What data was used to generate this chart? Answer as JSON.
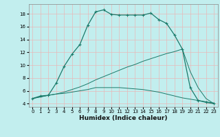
{
  "xlabel": "Humidex (Indice chaleur)",
  "bg_color": "#c2eeee",
  "grid_color_v": "#e8b8b8",
  "grid_color_h": "#d8d8d8",
  "line_color": "#1a7a6a",
  "xlim": [
    -0.5,
    23.5
  ],
  "ylim": [
    3.5,
    19.5
  ],
  "xticks": [
    0,
    1,
    2,
    3,
    4,
    5,
    6,
    7,
    8,
    9,
    10,
    11,
    12,
    13,
    14,
    15,
    16,
    17,
    18,
    19,
    20,
    21,
    22,
    23
  ],
  "yticks": [
    4,
    6,
    8,
    10,
    12,
    14,
    16,
    18
  ],
  "curve1_x": [
    0,
    1,
    2,
    3,
    4,
    5,
    6,
    7,
    8,
    9,
    10,
    11,
    12,
    13,
    14,
    15,
    16,
    17,
    18,
    19,
    20,
    21,
    22,
    23
  ],
  "curve1_y": [
    4.8,
    5.2,
    5.3,
    7.2,
    9.8,
    11.7,
    13.2,
    16.2,
    18.3,
    18.6,
    17.9,
    17.8,
    17.8,
    17.8,
    17.8,
    18.1,
    17.1,
    16.5,
    14.7,
    12.5,
    6.5,
    4.5,
    4.2,
    4.0
  ],
  "curve2_x": [
    0,
    2,
    3,
    4,
    5,
    6,
    7,
    8,
    9,
    10,
    11,
    12,
    13,
    14,
    15,
    16,
    17,
    18,
    19,
    20,
    21,
    22,
    23
  ],
  "curve2_y": [
    4.8,
    5.3,
    5.5,
    5.6,
    5.8,
    6.0,
    6.2,
    6.5,
    6.5,
    6.5,
    6.5,
    6.4,
    6.3,
    6.2,
    6.0,
    5.8,
    5.5,
    5.2,
    4.9,
    4.7,
    4.5,
    4.3,
    4.1
  ],
  "curve3_x": [
    0,
    2,
    3,
    4,
    5,
    6,
    7,
    8,
    9,
    10,
    11,
    12,
    13,
    14,
    15,
    16,
    17,
    18,
    19,
    20,
    21,
    22,
    23
  ],
  "curve3_y": [
    4.8,
    5.3,
    5.5,
    5.8,
    6.2,
    6.6,
    7.1,
    7.7,
    8.2,
    8.7,
    9.2,
    9.7,
    10.1,
    10.6,
    11.0,
    11.4,
    11.8,
    12.1,
    12.5,
    9.0,
    6.5,
    4.8,
    4.0
  ]
}
